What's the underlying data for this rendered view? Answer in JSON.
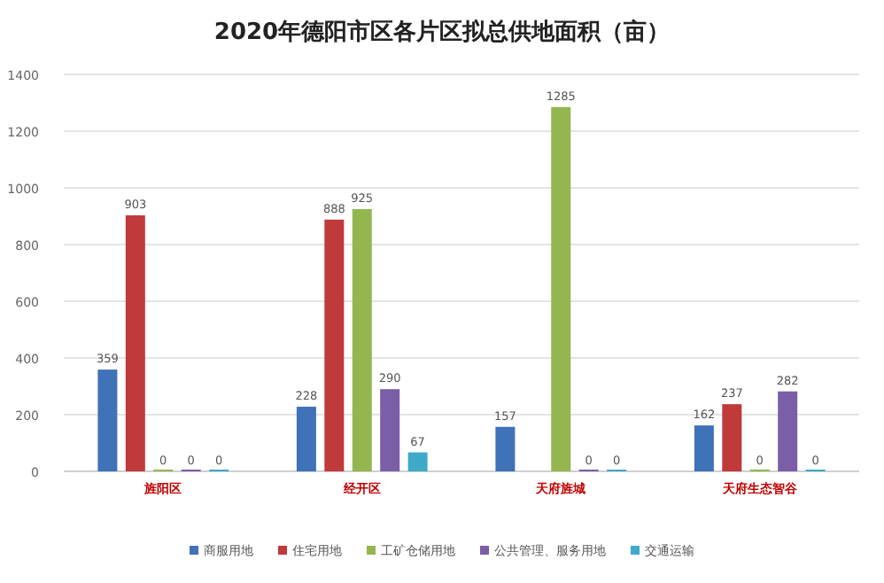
{
  "chart_data": {
    "type": "bar",
    "title": "2020年德阳市区各片区拟总供地面积（亩）",
    "categories": [
      "旌阳区",
      "经开区",
      "天府旌城",
      "天府生态智谷"
    ],
    "series": [
      {
        "name": "商服用地",
        "color": "#3f72b8",
        "values": [
          359,
          228,
          157,
          162
        ]
      },
      {
        "name": "住宅用地",
        "color": "#c0393b",
        "values": [
          903,
          888,
          null,
          237
        ]
      },
      {
        "name": "工矿仓储用地",
        "color": "#93b64f",
        "values": [
          0,
          925,
          1285,
          0
        ]
      },
      {
        "name": "公共管理、服务用地",
        "color": "#7b5ea7",
        "values": [
          0,
          290,
          0,
          282
        ]
      },
      {
        "name": "交通运输",
        "color": "#3fa9c9",
        "values": [
          0,
          67,
          0,
          0
        ]
      }
    ],
    "ylim": [
      0,
      1400
    ],
    "yticks": [
      0,
      200,
      400,
      600,
      800,
      1000,
      1200,
      1400
    ],
    "grid": "y",
    "legend": "bottom",
    "data_labels": true
  }
}
